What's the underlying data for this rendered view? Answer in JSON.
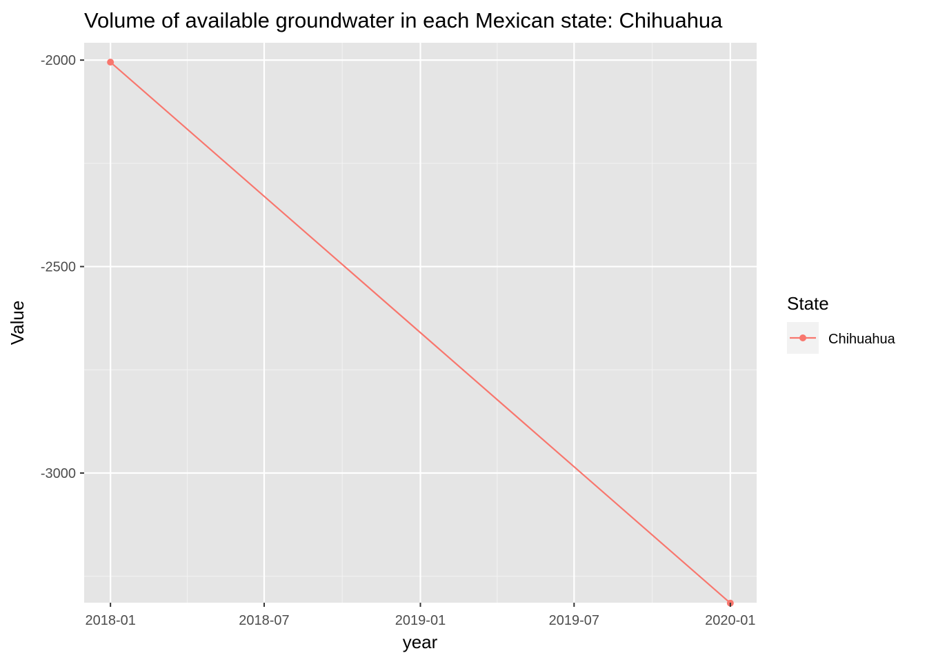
{
  "chart_data": {
    "type": "line",
    "title": "Volume of available groundwater in each Mexican state: Chihuahua",
    "xlabel": "year",
    "ylabel": "Value",
    "x_ticks": [
      "2018-01",
      "2018-07",
      "2019-01",
      "2019-07",
      "2020-01"
    ],
    "y_ticks": [
      -2000,
      -2500,
      -3000
    ],
    "ylim": [
      -3314,
      -1958
    ],
    "xlim": [
      "2017-12-01",
      "2020-02-01"
    ],
    "grid": true,
    "legend": {
      "title": "State",
      "position": "right"
    },
    "series": [
      {
        "name": "Chihuahua",
        "color": "#F8766D",
        "x": [
          "2018-01-01",
          "2020-01-01"
        ],
        "y": [
          -2005,
          -3315
        ]
      }
    ]
  }
}
